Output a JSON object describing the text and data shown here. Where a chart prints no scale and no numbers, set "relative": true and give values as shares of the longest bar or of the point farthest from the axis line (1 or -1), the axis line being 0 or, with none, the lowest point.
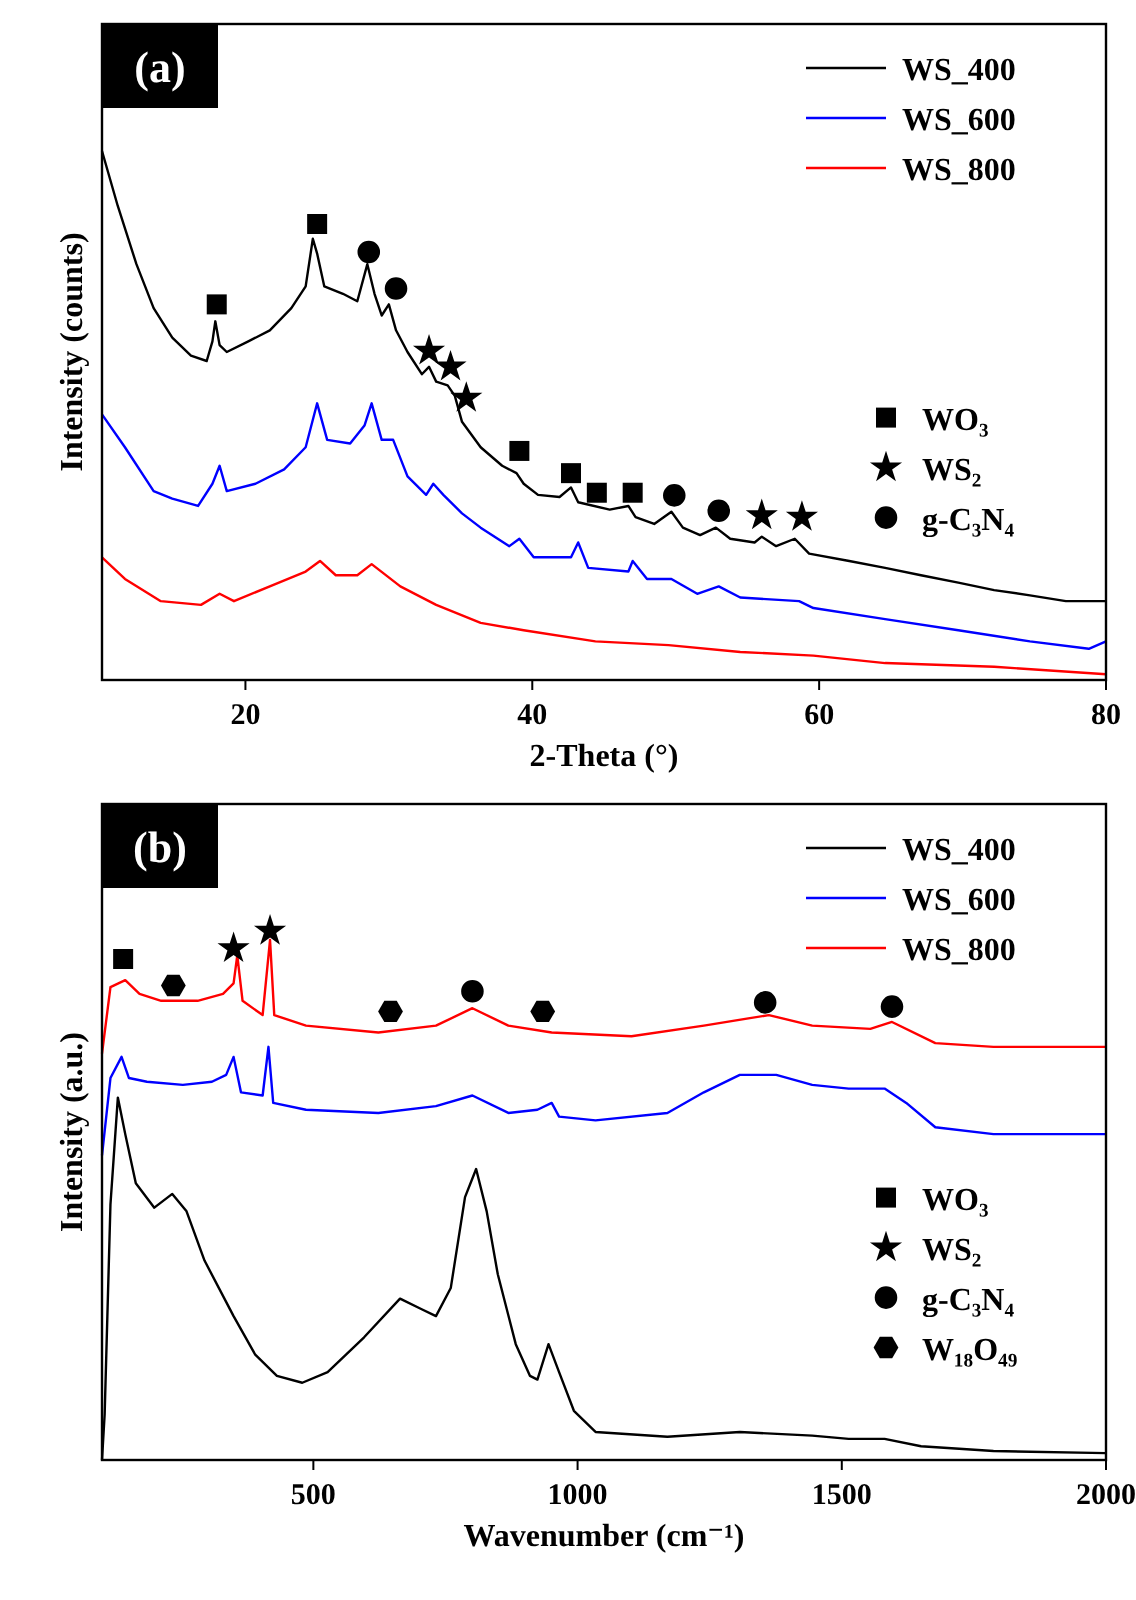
{
  "chart_data": [
    {
      "type": "line",
      "title": "(a)",
      "xlabel": "2-Theta (°)",
      "ylabel": "Intensity (counts)",
      "relative": true,
      "xlim": [
        10,
        80
      ],
      "xticks": [
        20,
        40,
        60,
        80
      ],
      "legend": "top right",
      "line_style": "solid",
      "series": [
        {
          "name": "WS_400",
          "color": "#000000",
          "x": [
            10,
            11.1,
            12.4,
            13.6,
            14.9,
            16.2,
            17.3,
            17.7,
            17.9,
            18.2,
            18.7,
            20.2,
            21.7,
            23.2,
            24.2,
            24.7,
            25.0,
            25.5,
            26.8,
            27.8,
            28.5,
            29.0,
            29.5,
            30.0,
            30.5,
            31.3,
            32.3,
            32.8,
            33.3,
            34.1,
            34.6,
            35.1,
            36.4,
            37.9,
            38.9,
            39.4,
            40.4,
            41.9,
            42.7,
            43.2,
            45.4,
            46.7,
            47.2,
            48.5,
            49.7,
            50.5,
            51.7,
            52.8,
            53.8,
            55.5,
            56.0,
            57.0,
            58.3,
            59.3,
            62.1,
            64.6,
            67.1,
            69.7,
            72.2,
            74.7,
            77.2,
            80
          ],
          "values": [
            1.0,
            0.896,
            0.786,
            0.703,
            0.647,
            0.613,
            0.603,
            0.64,
            0.678,
            0.633,
            0.62,
            0.64,
            0.661,
            0.703,
            0.744,
            0.834,
            0.806,
            0.744,
            0.73,
            0.716,
            0.786,
            0.73,
            0.689,
            0.71,
            0.661,
            0.62,
            0.578,
            0.592,
            0.564,
            0.557,
            0.537,
            0.488,
            0.44,
            0.405,
            0.391,
            0.371,
            0.35,
            0.346,
            0.364,
            0.336,
            0.322,
            0.329,
            0.308,
            0.295,
            0.318,
            0.288,
            0.274,
            0.288,
            0.267,
            0.26,
            0.271,
            0.253,
            0.267,
            0.239,
            0.225,
            0.212,
            0.198,
            0.184,
            0.17,
            0.16,
            0.149,
            0.149
          ]
        },
        {
          "name": "WS_600",
          "color": "#0000ff",
          "x": [
            10,
            11.6,
            13.6,
            14.9,
            16.7,
            17.7,
            18.2,
            18.7,
            20.7,
            22.7,
            24.2,
            25.0,
            25.7,
            27.3,
            28.3,
            28.8,
            29.5,
            30.3,
            31.3,
            32.6,
            33.1,
            33.8,
            35.1,
            36.4,
            38.4,
            39.1,
            40.1,
            42.7,
            43.2,
            43.9,
            46.7,
            47.0,
            48.0,
            49.7,
            51.5,
            53.0,
            54.5,
            58.6,
            59.6,
            64.6,
            69.7,
            74.7,
            78.8,
            80
          ],
          "values": [
            0.502,
            0.44,
            0.357,
            0.343,
            0.329,
            0.371,
            0.405,
            0.357,
            0.371,
            0.398,
            0.44,
            0.523,
            0.454,
            0.447,
            0.481,
            0.523,
            0.454,
            0.454,
            0.385,
            0.35,
            0.371,
            0.35,
            0.315,
            0.288,
            0.253,
            0.267,
            0.232,
            0.232,
            0.26,
            0.212,
            0.205,
            0.225,
            0.191,
            0.191,
            0.163,
            0.177,
            0.156,
            0.149,
            0.136,
            0.115,
            0.094,
            0.073,
            0.059,
            0.073
          ]
        },
        {
          "name": "WS_800",
          "color": "#ff0000",
          "x": [
            10,
            11.6,
            14.1,
            16.9,
            18.2,
            19.2,
            21.7,
            24.2,
            25.2,
            26.3,
            27.8,
            28.8,
            30.8,
            33.3,
            36.4,
            39.4,
            44.4,
            49.5,
            54.5,
            59.6,
            64.6,
            72.2,
            80
          ],
          "values": [
            0.232,
            0.191,
            0.149,
            0.142,
            0.163,
            0.149,
            0.177,
            0.205,
            0.225,
            0.198,
            0.198,
            0.219,
            0.177,
            0.142,
            0.108,
            0.094,
            0.073,
            0.066,
            0.053,
            0.046,
            0.032,
            0.025,
            0.011
          ]
        },
        {
          "name": "WO₃",
          "type": "scatter",
          "marker": "square",
          "color": "#000000",
          "x": [
            18.0,
            25.0,
            39.1,
            42.7,
            44.5,
            47.0
          ],
          "values": [
            0.71,
            0.862,
            0.433,
            0.391,
            0.354,
            0.354
          ]
        },
        {
          "name": "WS₂",
          "type": "scatter",
          "marker": "star",
          "color": "#000000",
          "x": [
            32.8,
            34.3,
            35.4,
            56.0,
            58.8
          ],
          "values": [
            0.622,
            0.592,
            0.533,
            0.311,
            0.308
          ]
        },
        {
          "name": "g-C₃N₄",
          "type": "scatter",
          "marker": "circle",
          "color": "#000000",
          "x": [
            28.6,
            30.5,
            49.9,
            53.0
          ],
          "values": [
            0.809,
            0.74,
            0.349,
            0.32
          ]
        }
      ]
    },
    {
      "type": "line",
      "title": "(b)",
      "xlabel": "Wavenumber (cm⁻¹)",
      "ylabel": "Intensity (a.u.)",
      "relative": true,
      "xlim": [
        100,
        2000
      ],
      "xticks": [
        500,
        1000,
        1500,
        2000
      ],
      "legend": "top right",
      "line_style": "solid",
      "series": [
        {
          "name": "WS_400",
          "color": "#000000",
          "x": [
            100,
            105,
            116,
            130,
            144,
            164,
            199,
            233,
            260,
            294,
            349,
            390,
            431,
            479,
            527,
            596,
            664,
            705,
            732,
            760,
            787,
            808,
            828,
            849,
            883,
            910,
            924,
            945,
            965,
            993,
            1034,
            1170,
            1307,
            1444,
            1513,
            1581,
            1650,
            1787,
            2000
          ],
          "values": [
            0,
            0.086,
            0.483,
            0.685,
            0.616,
            0.523,
            0.477,
            0.503,
            0.47,
            0.377,
            0.272,
            0.199,
            0.159,
            0.146,
            0.166,
            0.232,
            0.305,
            0.285,
            0.272,
            0.325,
            0.497,
            0.55,
            0.47,
            0.351,
            0.219,
            0.159,
            0.152,
            0.219,
            0.166,
            0.093,
            0.053,
            0.044,
            0.053,
            0.046,
            0.04,
            0.04,
            0.026,
            0.017,
            0.013
          ]
        },
        {
          "name": "WS_600",
          "color": "#0000ff",
          "x": [
            100,
            116,
            137,
            151,
            185,
            253,
            308,
            335,
            349,
            363,
            404,
            415,
            424,
            486,
            623,
            732,
            801,
            869,
            924,
            951,
            965,
            1034,
            1170,
            1239,
            1307,
            1376,
            1444,
            1513,
            1581,
            1622,
            1677,
            1787,
            2000
          ],
          "values": [
            0.576,
            0.722,
            0.762,
            0.722,
            0.715,
            0.709,
            0.715,
            0.728,
            0.762,
            0.695,
            0.689,
            0.781,
            0.675,
            0.662,
            0.656,
            0.669,
            0.689,
            0.656,
            0.662,
            0.675,
            0.649,
            0.642,
            0.656,
            0.695,
            0.728,
            0.728,
            0.709,
            0.702,
            0.702,
            0.675,
            0.629,
            0.616,
            0.616
          ]
        },
        {
          "name": "WS_800",
          "color": "#ff0000",
          "x": [
            100,
            116,
            144,
            171,
            212,
            281,
            329,
            349,
            356,
            366,
            404,
            418,
            426,
            486,
            623,
            732,
            801,
            869,
            951,
            1102,
            1239,
            1362,
            1444,
            1554,
            1595,
            1677,
            1787,
            2000
          ],
          "values": [
            0.768,
            0.894,
            0.907,
            0.881,
            0.868,
            0.868,
            0.881,
            0.901,
            0.954,
            0.868,
            0.841,
            0.983,
            0.841,
            0.821,
            0.808,
            0.821,
            0.854,
            0.821,
            0.808,
            0.801,
            0.821,
            0.841,
            0.821,
            0.815,
            0.828,
            0.788,
            0.781,
            0.781
          ]
        },
        {
          "name": "WO₃",
          "type": "scatter",
          "marker": "square",
          "color": "#000000",
          "x": [
            140
          ],
          "values": [
            0.947
          ]
        },
        {
          "name": "WS₂",
          "type": "scatter",
          "marker": "star",
          "color": "#000000",
          "x": [
            349,
            418
          ],
          "values": [
            0.967,
            1.0
          ]
        },
        {
          "name": "g-C₃N₄",
          "type": "scatter",
          "marker": "circle",
          "color": "#000000",
          "x": [
            801,
            1355,
            1595
          ],
          "values": [
            0.886,
            0.865,
            0.857
          ]
        },
        {
          "name": "W₁₈O₄₉",
          "type": "scatter",
          "color": "#000000",
          "x": [
            235,
            646,
            934
          ],
          "values": [
            0.897,
            0.848,
            0.848
          ]
        }
      ]
    }
  ]
}
